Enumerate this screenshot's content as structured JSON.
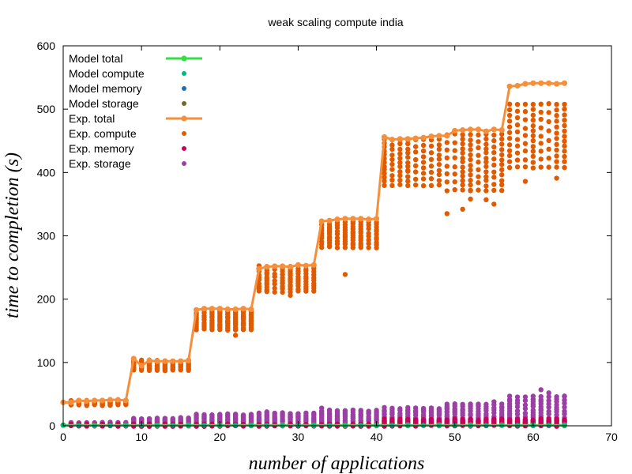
{
  "chart_data": {
    "type": "scatter",
    "title": "weak scaling compute india",
    "xlabel": "number of applications",
    "ylabel": "time to completion (s)",
    "xlim": [
      0,
      70
    ],
    "ylim": [
      0,
      600
    ],
    "xticks": [
      0,
      10,
      20,
      30,
      40,
      50,
      60,
      70
    ],
    "yticks": [
      0,
      100,
      200,
      300,
      400,
      500,
      600
    ],
    "grid": false,
    "legend_position": "top-left",
    "legend": [
      {
        "label": "Model total",
        "color": "#33dd44",
        "style": "linepoints"
      },
      {
        "label": "Model compute",
        "color": "#00b87a",
        "style": "points"
      },
      {
        "label": "Model memory",
        "color": "#1a70b8",
        "style": "points"
      },
      {
        "label": "Model storage",
        "color": "#6b6b2a",
        "style": "points"
      },
      {
        "label": "Exp.  total",
        "color": "#f58f3c",
        "style": "linepoints"
      },
      {
        "label": "Exp.  compute",
        "color": "#e05a00",
        "style": "points"
      },
      {
        "label": "Exp.  memory",
        "color": "#c8005a",
        "style": "points"
      },
      {
        "label": "Exp.  storage",
        "color": "#9b3fa4",
        "style": "points"
      }
    ],
    "series": [
      {
        "name": "Exp.  total",
        "color": "#f58f3c",
        "x": [
          0,
          1,
          2,
          3,
          4,
          5,
          6,
          7,
          8,
          9,
          10,
          11,
          12,
          13,
          14,
          15,
          16,
          17,
          18,
          19,
          20,
          21,
          22,
          23,
          24,
          25,
          26,
          27,
          28,
          29,
          30,
          31,
          32,
          33,
          34,
          35,
          36,
          37,
          38,
          39,
          40,
          41,
          42,
          43,
          44,
          45,
          46,
          47,
          48,
          49,
          50,
          51,
          52,
          53,
          54,
          55,
          56,
          57,
          58,
          59,
          60,
          61,
          62,
          63,
          64
        ],
        "y": [
          37,
          37,
          40,
          39,
          40,
          40,
          41,
          41,
          40,
          106,
          95,
          103,
          102,
          102,
          102,
          102,
          103,
          183,
          185,
          185,
          185,
          184,
          184,
          185,
          184,
          248,
          251,
          252,
          252,
          251,
          254,
          253,
          254,
          323,
          324,
          326,
          327,
          327,
          327,
          326,
          327,
          456,
          452,
          453,
          453,
          454,
          455,
          457,
          458,
          458,
          466,
          467,
          468,
          468,
          465,
          468,
          467,
          536,
          537,
          540,
          541,
          541,
          541,
          540,
          541
        ]
      },
      {
        "name": "Model total",
        "color": "#33dd44",
        "x": [
          0,
          4,
          8,
          12,
          16,
          20,
          24,
          28,
          32,
          36,
          40,
          44,
          48,
          52,
          56,
          60,
          64
        ],
        "y": [
          1,
          1,
          1,
          1,
          1,
          1,
          1,
          1,
          1,
          1,
          1,
          1,
          1,
          1,
          1,
          1,
          1
        ]
      },
      {
        "name": "Exp.  compute",
        "color": "#e05a00",
        "groups": [
          {
            "x_range": [
              1,
              8
            ],
            "min": 33,
            "max": 40
          },
          {
            "x_range": [
              9,
              16
            ],
            "min": 88,
            "max": 103
          },
          {
            "x_range": [
              17,
              24
            ],
            "min": 152,
            "max": 182
          },
          {
            "x_range": [
              25,
              32
            ],
            "min": 212,
            "max": 252
          },
          {
            "x_range": [
              33,
              40
            ],
            "min": 282,
            "max": 322
          },
          {
            "x_range": [
              41,
              48
            ],
            "min": 380,
            "max": 452
          },
          {
            "x_range": [
              49,
              56
            ],
            "min": 372,
            "max": 460
          },
          {
            "x_range": [
              57,
              64
            ],
            "min": 408,
            "max": 508
          }
        ],
        "outliers": [
          {
            "x": 22,
            "y": 143
          },
          {
            "x": 29,
            "y": 206
          },
          {
            "x": 36,
            "y": 239
          },
          {
            "x": 49,
            "y": 335
          },
          {
            "x": 51,
            "y": 342
          },
          {
            "x": 52,
            "y": 358
          },
          {
            "x": 54,
            "y": 357
          },
          {
            "x": 55,
            "y": 350
          },
          {
            "x": 59,
            "y": 386
          },
          {
            "x": 63,
            "y": 391
          },
          {
            "x": 44,
            "y": 403
          },
          {
            "x": 52,
            "y": 372
          }
        ]
      },
      {
        "name": "Exp.  storage",
        "color": "#9b3fa4",
        "groups": [
          {
            "x_range": [
              1,
              8
            ],
            "min": 1,
            "max": 5
          },
          {
            "x_range": [
              9,
              16
            ],
            "min": 1,
            "max": 12
          },
          {
            "x_range": [
              17,
              24
            ],
            "min": 1,
            "max": 18
          },
          {
            "x_range": [
              25,
              32
            ],
            "min": 1,
            "max": 20
          },
          {
            "x_range": [
              33,
              40
            ],
            "min": 1,
            "max": 24
          },
          {
            "x_range": [
              41,
              48
            ],
            "min": 1,
            "max": 28
          },
          {
            "x_range": [
              49,
              56
            ],
            "min": 1,
            "max": 34
          },
          {
            "x_range": [
              57,
              64
            ],
            "min": 1,
            "max": 46
          }
        ],
        "outliers": [
          {
            "x": 26,
            "y": 22
          },
          {
            "x": 33,
            "y": 28
          },
          {
            "x": 55,
            "y": 38
          },
          {
            "x": 61,
            "y": 57
          },
          {
            "x": 62,
            "y": 52
          },
          {
            "x": 64,
            "y": 47
          }
        ]
      },
      {
        "name": "Exp.  memory",
        "color": "#c8005a",
        "groups": [
          {
            "x_range": [
              1,
              40
            ],
            "min": 0,
            "max": 2
          },
          {
            "x_range": [
              41,
              64
            ],
            "min": 0,
            "max": 10
          }
        ]
      },
      {
        "name": "Model compute",
        "color": "#00b87a",
        "x": [
          0,
          2,
          4,
          6,
          8,
          10,
          12,
          14,
          16,
          18,
          20,
          22,
          24,
          26,
          28,
          30,
          32,
          34,
          36,
          38,
          40,
          42,
          44,
          46,
          48,
          50,
          52,
          54,
          56,
          58,
          60,
          62,
          64
        ],
        "y": [
          1,
          1,
          1,
          1,
          1,
          1,
          1,
          1,
          1,
          1,
          1,
          1,
          1,
          1,
          1,
          1,
          1,
          1,
          1,
          1,
          1,
          1,
          1,
          1,
          1,
          1,
          1,
          1,
          1,
          1,
          1,
          1,
          1
        ]
      }
    ]
  }
}
